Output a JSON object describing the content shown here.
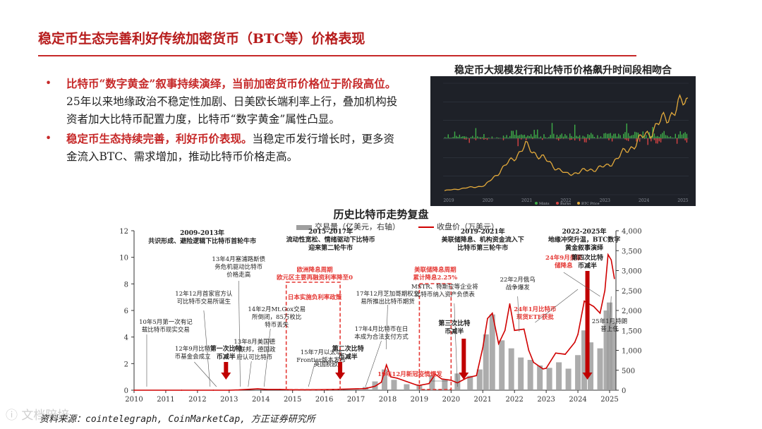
{
  "page": {
    "title": "稳定币生态完善利好传统加密货币（BTC等）价格表现",
    "bullets": [
      {
        "lead": "比特币“数字黄金”叙事持续演绎，当前加密货币价格位于阶段高位。",
        "body": "25年以来地缘政治不稳定性加剧、日美欧长端利率上行，叠加机构投资者加大比特币配置力度，比特币“数字黄金”属性凸显。"
      },
      {
        "lead": "稳定币生态持续完善，利好币价表现。",
        "body": "当稳定币发行增长时，更多资金流入BTC、需求增加，推动比特币价格走高。"
      }
    ],
    "bullet_symbol": "•",
    "source": "资料来源：cointelegraph, CoinMarketCap, 方正证券研究所",
    "watermark": "ⓘ 文档陪培"
  },
  "colors": {
    "accent": "#c62828",
    "price_line": "#d00000",
    "volume_bar": "#9e9e9e",
    "highlight_box": "#e53935",
    "annotation_red": "#e53935"
  },
  "chart_data": [
    {
      "type": "line",
      "title": "稳定币大规模发行和比特币价格飙升时间段相吻合",
      "x": [
        "2019",
        "2020",
        "2021",
        "2022",
        "2023",
        "2024",
        "2025"
      ],
      "series": [
        {
          "name": "Mints",
          "type": "bar",
          "color": "#3fae49"
        },
        {
          "name": "Burns",
          "type": "bar",
          "color": "#d84343"
        },
        {
          "name": "BTC Price",
          "type": "line",
          "color": "#e2a93b",
          "values": [
            4000,
            9000,
            48000,
            20000,
            28000,
            60000,
            95000
          ]
        }
      ],
      "legend_position": "bottom-center"
    },
    {
      "type": "line",
      "title": "历史比特币走势复盘",
      "x_ticks": [
        "2010",
        "2011",
        "2012",
        "2013",
        "2014",
        "2015",
        "2016",
        "2017",
        "2018",
        "2019",
        "2020",
        "2021",
        "2022",
        "2023",
        "2024",
        "2025"
      ],
      "x_range": [
        2010,
        2025.2
      ],
      "y_left": {
        "ticks": [
          "0",
          "2",
          "4",
          "6",
          "8",
          "10",
          "12"
        ],
        "range": [
          0,
          12
        ]
      },
      "y_right": {
        "ticks": [
          "0",
          "500",
          "1,000",
          "1,500",
          "2,000",
          "2,500",
          "3,000",
          "3,500",
          "4,000"
        ],
        "range": [
          0,
          4000
        ]
      },
      "series": [
        {
          "name": "交易量（亿美元，右轴）",
          "type": "bar",
          "axis": "right",
          "x": [
            2016.5,
            2017.0,
            2017.3,
            2017.6,
            2017.9,
            2018.2,
            2018.6,
            2019.0,
            2019.4,
            2019.8,
            2020.2,
            2020.6,
            2020.9,
            2021.1,
            2021.3,
            2021.6,
            2021.9,
            2022.2,
            2022.5,
            2022.8,
            2023.1,
            2023.4,
            2023.7,
            2024.0,
            2024.2,
            2024.4,
            2024.7,
            2024.9,
            2025.0,
            2025.1
          ],
          "values": [
            5,
            30,
            80,
            220,
            520,
            260,
            150,
            120,
            380,
            270,
            420,
            360,
            520,
            1400,
            1900,
            1250,
            1050,
            820,
            760,
            620,
            560,
            700,
            540,
            880,
            1500,
            1200,
            1050,
            2000,
            2200,
            1700
          ]
        },
        {
          "name": "收盘价（万美元）",
          "type": "line",
          "axis": "left",
          "x": [
            2010.0,
            2011.5,
            2012.5,
            2013.0,
            2013.3,
            2013.9,
            2014.2,
            2014.6,
            2015.0,
            2015.5,
            2016.0,
            2016.5,
            2017.0,
            2017.3,
            2017.6,
            2017.8,
            2017.96,
            2018.1,
            2018.3,
            2018.6,
            2018.9,
            2019.0,
            2019.3,
            2019.5,
            2019.7,
            2020.0,
            2020.2,
            2020.5,
            2020.8,
            2021.0,
            2021.15,
            2021.3,
            2021.5,
            2021.7,
            2021.85,
            2022.0,
            2022.3,
            2022.45,
            2022.6,
            2022.9,
            2023.0,
            2023.3,
            2023.6,
            2023.9,
            2024.0,
            2024.2,
            2024.5,
            2024.7,
            2024.85,
            2024.95,
            2025.05,
            2025.15
          ],
          "values": [
            0.0,
            0.001,
            0.001,
            0.002,
            0.02,
            0.1,
            0.06,
            0.06,
            0.03,
            0.03,
            0.04,
            0.07,
            0.1,
            0.12,
            0.3,
            0.6,
            1.9,
            1.0,
            0.9,
            0.65,
            0.4,
            0.36,
            0.5,
            1.2,
            0.85,
            0.75,
            0.55,
            0.93,
            1.1,
            3.2,
            5.4,
            5.8,
            3.5,
            4.5,
            6.5,
            4.5,
            4.6,
            3.0,
            2.1,
            1.6,
            1.65,
            2.8,
            2.7,
            3.6,
            4.2,
            6.7,
            6.3,
            5.8,
            7.5,
            10.2,
            9.8,
            8.4
          ]
        }
      ],
      "annotations": [
        {
          "text": "2009-2013年\n共识形成、避险逻辑下比特币首轮牛市",
          "style": "bold"
        },
        {
          "text": "2015-2017年\n流动性宽松、情绪驱动下比特币\n迎来第二轮牛市",
          "style": "bold"
        },
        {
          "text": "2019-2021年\n美联储降息、机构资金流入下\n比特币第三轮牛市",
          "style": "bold"
        },
        {
          "text": "2022-2025年\n地缘冲突升温，BTC数字\n黄金叙事演绎",
          "style": "bold"
        },
        {
          "text": "13年4月塞浦路斯债\n务危机驱动比特币\n价格走高",
          "style": "normal"
        },
        {
          "text": "12年12月首家官方认\n可比特币交易所诞生",
          "style": "normal"
        },
        {
          "text": "14年2月Mt.Gox交易\n所倒闭，85万枚比\n特币丢失",
          "style": "normal"
        },
        {
          "text": "13年8月美国德\n州联邦，德国政\n府认可比特币",
          "style": "normal"
        },
        {
          "text": "10年5月第一次有记\n载比特币现实交易",
          "style": "normal"
        },
        {
          "text": "12年9月比特\n币基金会成立",
          "style": "normal"
        },
        {
          "text": "第一次比特\n币减半",
          "style": "bold"
        },
        {
          "text": "欧洲降息周期\n欧元区主要再融资利率降至0",
          "style": "red"
        },
        {
          "text": "日本实施负利率政策",
          "style": "red"
        },
        {
          "text": "15年7月以太坊\nFrontier版本发布",
          "style": "normal"
        },
        {
          "text": "英国脱欧",
          "style": "normal"
        },
        {
          "text": "第二次比特\n币减半",
          "style": "bold"
        },
        {
          "text": "17年12月芝加哥期权交\n易所推出比特币期货",
          "style": "normal"
        },
        {
          "text": "17年4月比特币在日\n本成为合法支付方式",
          "style": "normal"
        },
        {
          "text": "19年12月新冠疫情爆发",
          "style": "red"
        },
        {
          "text": "美联储降息周期\n累计降息2.25%",
          "style": "red"
        },
        {
          "text": "MSTR、特斯拉等企业将\n比特币纳入资产负债表",
          "style": "normal"
        },
        {
          "text": "第三次比特\n币减半",
          "style": "bold"
        },
        {
          "text": "22年2月俄乌\n战争爆发",
          "style": "normal"
        },
        {
          "text": "24年9月美联\n储降息",
          "style": "red"
        },
        {
          "text": "第四次比特\n币减半",
          "style": "bold"
        },
        {
          "text": "24年1月比特币\n现货ETF获批",
          "style": "red"
        },
        {
          "text": "25年1月特朗\n普上任",
          "style": "normal"
        }
      ],
      "legend_position": "top-center"
    }
  ]
}
